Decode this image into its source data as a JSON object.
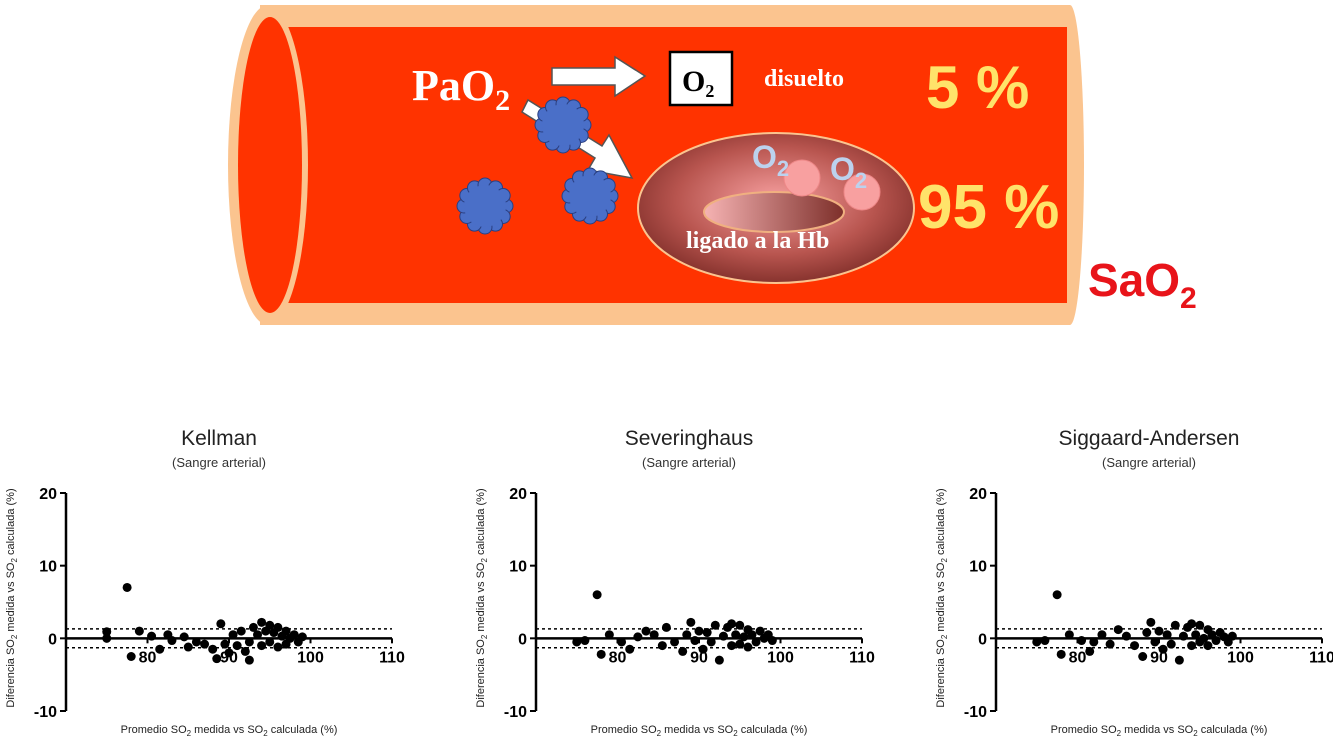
{
  "diagram": {
    "pao2_label": "PaO",
    "pao2_sub": "2",
    "o2_box_label": "O",
    "o2_box_sub": "2",
    "dissolved_label": "disuelto",
    "dissolved_percent": "5 %",
    "bound_label": "ligado a la Hb",
    "bound_percent": "95 %",
    "o2_bubble_label": "O",
    "o2_bubble_sub": "2",
    "sao2_label": "SaO",
    "sao2_sub": "2",
    "colors": {
      "vessel_fill": "#ff3300",
      "vessel_rim": "#fbc48f",
      "percent_text": "#ffe36a",
      "sao2_text": "#e8141a",
      "molecule": "#4a6fc8"
    }
  },
  "chart_data": [
    {
      "type": "scatter",
      "title": "Kellman",
      "subtitle": "(Sangre arterial)",
      "ylabel_pre": "Diferencia SO",
      "ylabel_sub": "2",
      "ylabel_post": " medida vs SO",
      "ylabel_sub2": "2",
      "ylabel_end": " calculada (%)",
      "xlabel_pre": "Promedio SO",
      "xlabel_sub": "2",
      "xlabel_mid": " medida vs SO",
      "xlabel_sub2": "2",
      "xlabel_end": " calculada (%)",
      "xlim": [
        70,
        110
      ],
      "ylim": [
        -10,
        20
      ],
      "xticks": [
        "80",
        "90",
        "100",
        "110"
      ],
      "yticks": [
        "20",
        "10",
        "0",
        "-10"
      ],
      "limits_of_agreement": [
        1.3,
        -1.3
      ],
      "points": [
        [
          77.5,
          7.0
        ],
        [
          75.0,
          0.9
        ],
        [
          75.0,
          0.0
        ],
        [
          79.0,
          1.0
        ],
        [
          78.0,
          -2.5
        ],
        [
          80.5,
          0.3
        ],
        [
          81.5,
          -1.5
        ],
        [
          82.5,
          0.5
        ],
        [
          83.0,
          -0.3
        ],
        [
          84.5,
          0.2
        ],
        [
          85.0,
          -1.2
        ],
        [
          86.0,
          -0.5
        ],
        [
          87.0,
          -0.8
        ],
        [
          88.0,
          -1.5
        ],
        [
          88.5,
          -2.8
        ],
        [
          89.0,
          2.0
        ],
        [
          89.5,
          -0.8
        ],
        [
          90.0,
          -2.0
        ],
        [
          90.5,
          0.5
        ],
        [
          91.0,
          -1.0
        ],
        [
          91.5,
          1.0
        ],
        [
          92.0,
          -1.8
        ],
        [
          92.5,
          -0.5
        ],
        [
          92.5,
          -3.0
        ],
        [
          93.0,
          1.5
        ],
        [
          93.5,
          0.5
        ],
        [
          94.0,
          -1.0
        ],
        [
          94.0,
          2.2
        ],
        [
          94.5,
          1.0
        ],
        [
          95.0,
          -0.5
        ],
        [
          95.0,
          1.8
        ],
        [
          95.5,
          0.8
        ],
        [
          96.0,
          -1.2
        ],
        [
          96.0,
          1.5
        ],
        [
          96.5,
          0.3
        ],
        [
          97.0,
          1.0
        ],
        [
          97.0,
          -0.8
        ],
        [
          97.5,
          0.0
        ],
        [
          98.0,
          0.5
        ],
        [
          98.5,
          -0.5
        ],
        [
          99.0,
          0.2
        ]
      ]
    },
    {
      "type": "scatter",
      "title": "Severinghaus",
      "subtitle": "(Sangre arterial)",
      "ylabel_pre": "Diferencia SO",
      "ylabel_sub": "2",
      "ylabel_post": " medida vs SO",
      "ylabel_sub2": "2",
      "ylabel_end": " calculada (%)",
      "xlabel_pre": "Promedio SO",
      "xlabel_sub": "2",
      "xlabel_mid": " medida vs SO",
      "xlabel_sub2": "2",
      "xlabel_end": " calculada (%)",
      "xlim": [
        70,
        110
      ],
      "ylim": [
        -10,
        20
      ],
      "xticks": [
        "80",
        "90",
        "100",
        "110"
      ],
      "yticks": [
        "20",
        "10",
        "0",
        "-10"
      ],
      "limits_of_agreement": [
        1.3,
        -1.3
      ],
      "points": [
        [
          77.5,
          6.0
        ],
        [
          75.0,
          -0.5
        ],
        [
          76.0,
          -0.3
        ],
        [
          78.0,
          -2.2
        ],
        [
          79.0,
          0.5
        ],
        [
          80.5,
          -0.5
        ],
        [
          81.5,
          -1.5
        ],
        [
          82.5,
          0.2
        ],
        [
          83.5,
          1.0
        ],
        [
          84.5,
          0.5
        ],
        [
          85.5,
          -1.0
        ],
        [
          86.0,
          1.5
        ],
        [
          87.0,
          -0.5
        ],
        [
          88.0,
          -1.8
        ],
        [
          88.5,
          0.5
        ],
        [
          89.0,
          2.2
        ],
        [
          89.5,
          -0.3
        ],
        [
          90.0,
          1.0
        ],
        [
          90.5,
          -1.5
        ],
        [
          91.0,
          0.8
        ],
        [
          91.5,
          -0.5
        ],
        [
          92.0,
          1.8
        ],
        [
          92.5,
          -3.0
        ],
        [
          93.0,
          0.3
        ],
        [
          93.5,
          1.5
        ],
        [
          94.0,
          -1.0
        ],
        [
          94.0,
          2.0
        ],
        [
          94.5,
          0.5
        ],
        [
          95.0,
          -0.8
        ],
        [
          95.0,
          1.8
        ],
        [
          95.5,
          0.2
        ],
        [
          96.0,
          1.2
        ],
        [
          96.0,
          -1.2
        ],
        [
          96.5,
          0.5
        ],
        [
          97.0,
          -0.5
        ],
        [
          97.5,
          1.0
        ],
        [
          98.0,
          0.0
        ],
        [
          98.5,
          0.5
        ],
        [
          99.0,
          -0.3
        ]
      ]
    },
    {
      "type": "scatter",
      "title": "Siggaard-Andersen",
      "subtitle": "(Sangre arterial)",
      "ylabel_pre": "Diferencia SO",
      "ylabel_sub": "2",
      "ylabel_post": " medida vs SO",
      "ylabel_sub2": "2",
      "ylabel_end": " calculada (%)",
      "xlabel_pre": "Promedio SO",
      "xlabel_sub": "2",
      "xlabel_mid": " medida vs SO",
      "xlabel_sub2": "2",
      "xlabel_end": " calculada (%)",
      "xlim": [
        70,
        110
      ],
      "ylim": [
        -10,
        20
      ],
      "xticks": [
        "80",
        "90",
        "100",
        "110"
      ],
      "yticks": [
        "20",
        "10",
        "0",
        "-10"
      ],
      "limits_of_agreement": [
        1.3,
        -1.3
      ],
      "points": [
        [
          77.5,
          6.0
        ],
        [
          75.0,
          -0.5
        ],
        [
          76.0,
          -0.3
        ],
        [
          78.0,
          -2.2
        ],
        [
          79.0,
          0.5
        ],
        [
          80.5,
          -0.3
        ],
        [
          81.5,
          -1.8
        ],
        [
          82.0,
          -0.5
        ],
        [
          83.0,
          0.5
        ],
        [
          84.0,
          -0.8
        ],
        [
          85.0,
          1.2
        ],
        [
          86.0,
          0.3
        ],
        [
          87.0,
          -1.0
        ],
        [
          88.0,
          -2.5
        ],
        [
          88.5,
          0.8
        ],
        [
          89.0,
          2.2
        ],
        [
          89.5,
          -0.5
        ],
        [
          90.0,
          1.0
        ],
        [
          90.5,
          -1.5
        ],
        [
          91.0,
          0.5
        ],
        [
          91.5,
          -0.8
        ],
        [
          92.0,
          1.8
        ],
        [
          92.5,
          -3.0
        ],
        [
          93.0,
          0.3
        ],
        [
          93.5,
          1.5
        ],
        [
          94.0,
          -1.0
        ],
        [
          94.0,
          2.0
        ],
        [
          94.5,
          0.5
        ],
        [
          95.0,
          -0.5
        ],
        [
          95.0,
          1.8
        ],
        [
          95.5,
          0.0
        ],
        [
          96.0,
          1.2
        ],
        [
          96.0,
          -1.0
        ],
        [
          96.5,
          0.5
        ],
        [
          97.0,
          -0.3
        ],
        [
          97.5,
          0.8
        ],
        [
          98.0,
          0.2
        ],
        [
          98.5,
          -0.5
        ],
        [
          99.0,
          0.3
        ]
      ]
    }
  ]
}
